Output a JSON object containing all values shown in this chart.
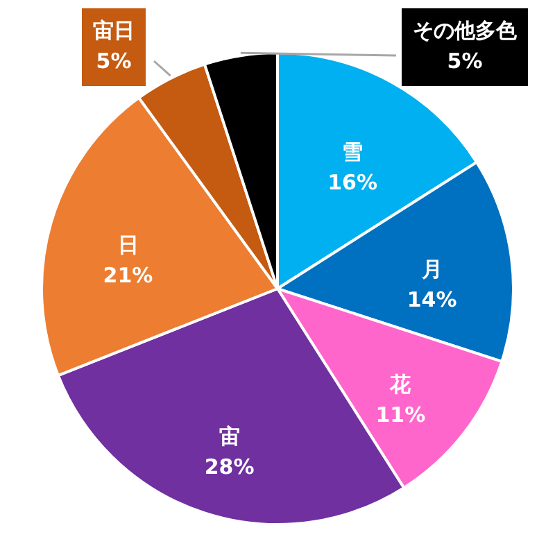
{
  "chart_data": {
    "type": "pie",
    "categories": [
      "雪",
      "月",
      "花",
      "宙",
      "日",
      "宙日",
      "その他多色"
    ],
    "values": [
      16,
      14,
      11,
      28,
      21,
      5,
      5
    ],
    "colors": [
      "#00b0f0",
      "#0070c0",
      "#ff66cc",
      "#7030a0",
      "#ed7d31",
      "#c55a11",
      "#000000"
    ],
    "value_labels": [
      "16%",
      "14%",
      "11%",
      "28%",
      "21%",
      "5%",
      "5%"
    ]
  }
}
